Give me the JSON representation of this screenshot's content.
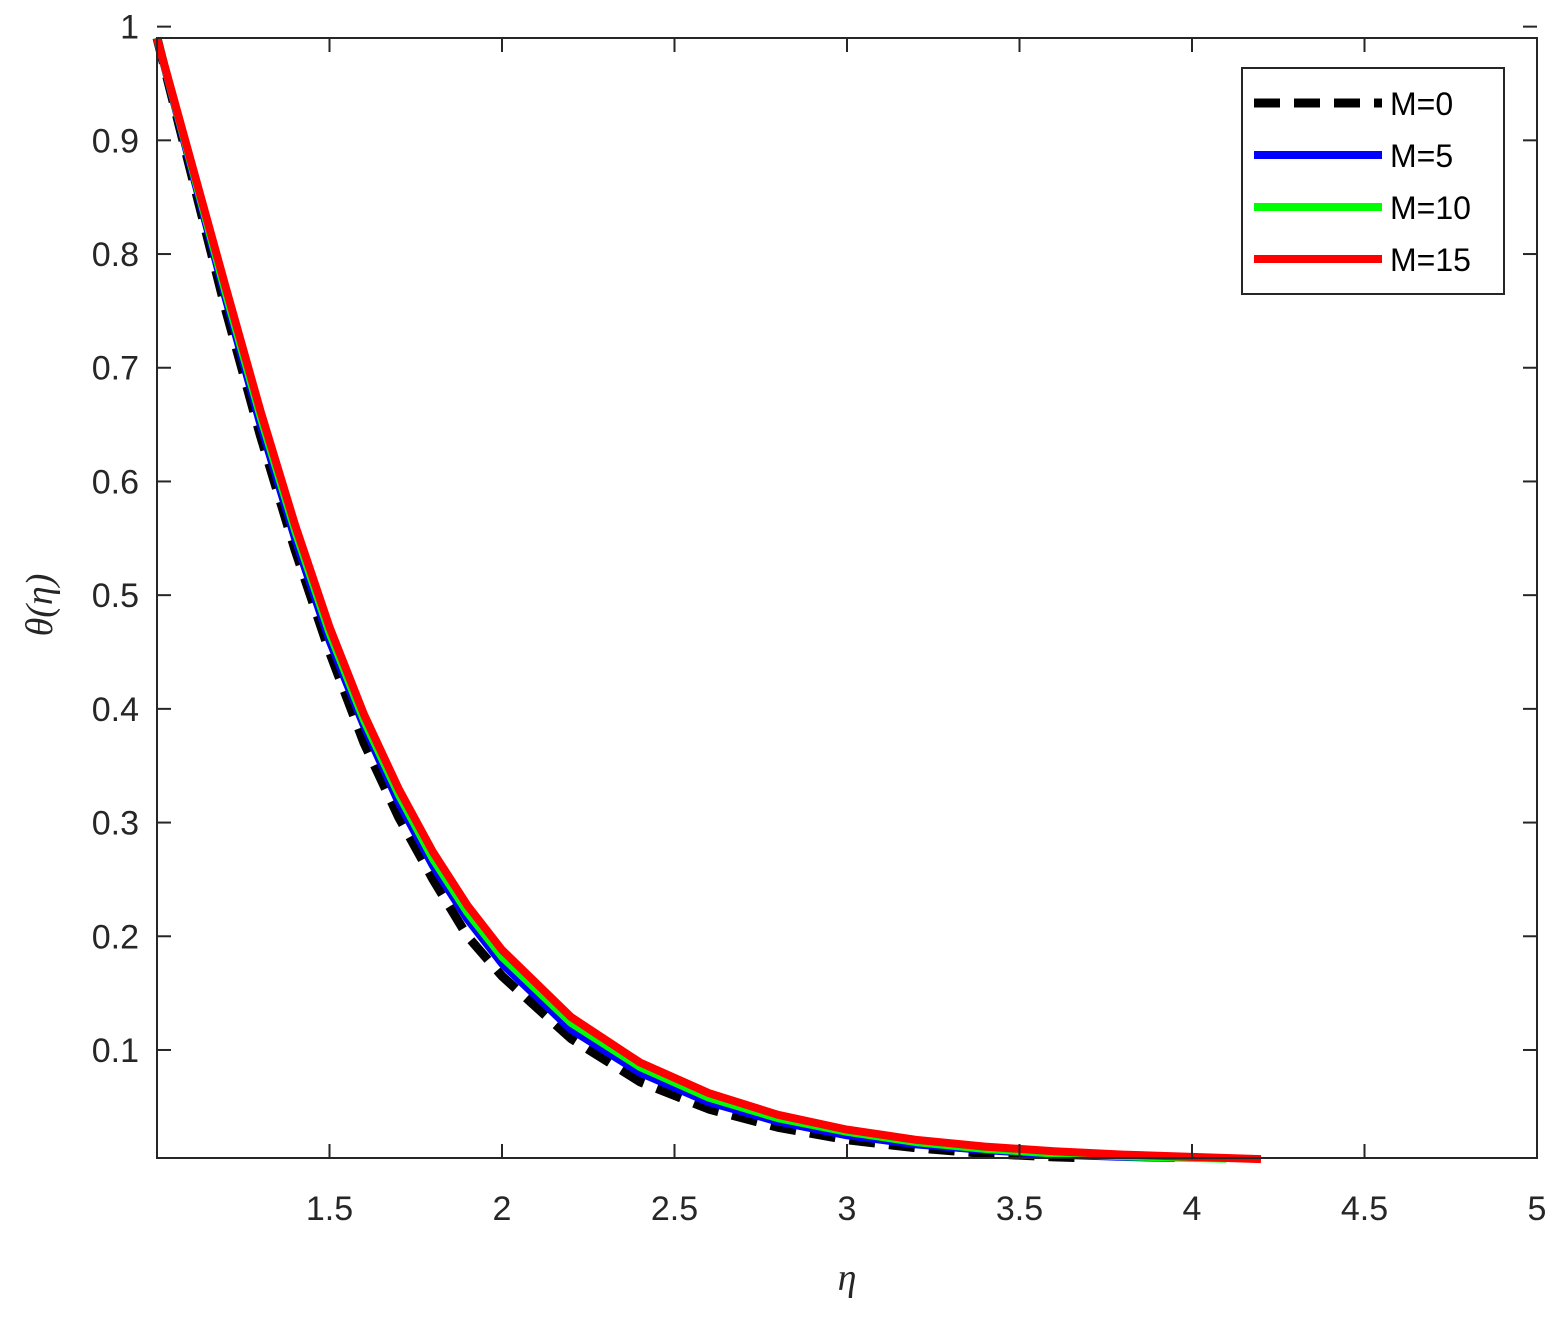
{
  "chart_data": {
    "type": "line",
    "title": "",
    "xlabel": "η",
    "ylabel": "θ(η)",
    "xlim": [
      1,
      5
    ],
    "ylim": [
      0.005,
      0.99
    ],
    "xticks": [
      1.5,
      2,
      2.5,
      3,
      3.5,
      4,
      4.5,
      5
    ],
    "xtick_labels": [
      "1.5",
      "2",
      "2.5",
      "3",
      "3.5",
      "4",
      "4.5",
      "5"
    ],
    "yticks": [
      0.1,
      0.2,
      0.3,
      0.4,
      0.5,
      0.6,
      0.7,
      0.8,
      0.9,
      1
    ],
    "ytick_labels": [
      "0.1",
      "0.2",
      "0.3",
      "0.4",
      "0.5",
      "0.6",
      "0.7",
      "0.8",
      "0.9",
      "1"
    ],
    "grid": false,
    "legend_position": "top-right",
    "series": [
      {
        "name": "M=0",
        "color": "#000000",
        "dash": true,
        "x": [
          1,
          1.1,
          1.2,
          1.3,
          1.4,
          1.5,
          1.6,
          1.7,
          1.8,
          1.9,
          2.0,
          2.2,
          2.4,
          2.6,
          2.8,
          3.0,
          3.2,
          3.4,
          3.6,
          3.7
        ],
        "y": [
          0.99,
          0.87,
          0.75,
          0.64,
          0.54,
          0.45,
          0.37,
          0.305,
          0.25,
          0.2,
          0.165,
          0.11,
          0.072,
          0.048,
          0.032,
          0.021,
          0.014,
          0.009,
          0.006,
          0.005
        ]
      },
      {
        "name": "M=5",
        "color": "#0000ff",
        "dash": false,
        "x": [
          1,
          1.1,
          1.2,
          1.3,
          1.4,
          1.5,
          1.6,
          1.7,
          1.8,
          1.9,
          2.0,
          2.2,
          2.4,
          2.6,
          2.8,
          3.0,
          3.2,
          3.4,
          3.6,
          3.8,
          3.95
        ],
        "y": [
          0.99,
          0.875,
          0.76,
          0.65,
          0.55,
          0.46,
          0.385,
          0.318,
          0.262,
          0.215,
          0.176,
          0.118,
          0.08,
          0.054,
          0.037,
          0.025,
          0.017,
          0.012,
          0.008,
          0.006,
          0.005
        ]
      },
      {
        "name": "M=10",
        "color": "#00ff00",
        "dash": false,
        "x": [
          1,
          1.1,
          1.2,
          1.3,
          1.4,
          1.5,
          1.6,
          1.7,
          1.8,
          1.9,
          2.0,
          2.2,
          2.4,
          2.6,
          2.8,
          3.0,
          3.2,
          3.4,
          3.6,
          3.8,
          4.0,
          4.1
        ],
        "y": [
          0.99,
          0.878,
          0.765,
          0.657,
          0.557,
          0.467,
          0.39,
          0.325,
          0.268,
          0.221,
          0.182,
          0.124,
          0.085,
          0.058,
          0.04,
          0.028,
          0.019,
          0.013,
          0.009,
          0.0065,
          0.005,
          0.0045
        ]
      },
      {
        "name": "M=15",
        "color": "#ff0000",
        "dash": false,
        "x": [
          1,
          1.1,
          1.2,
          1.3,
          1.4,
          1.5,
          1.6,
          1.7,
          1.8,
          1.9,
          2.0,
          2.2,
          2.4,
          2.6,
          2.8,
          3.0,
          3.2,
          3.4,
          3.6,
          3.8,
          4.0,
          4.2
        ],
        "y": [
          0.99,
          0.88,
          0.77,
          0.662,
          0.562,
          0.472,
          0.395,
          0.33,
          0.274,
          0.227,
          0.188,
          0.129,
          0.089,
          0.062,
          0.043,
          0.03,
          0.021,
          0.015,
          0.011,
          0.008,
          0.006,
          0.004
        ]
      }
    ]
  }
}
